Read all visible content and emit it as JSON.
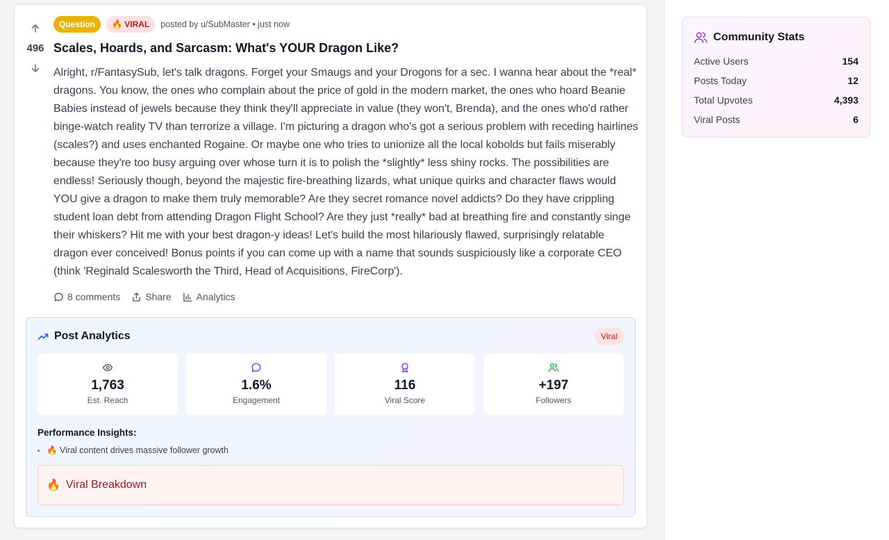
{
  "post": {
    "votes": "496",
    "flair": "Question",
    "viral_badge": "🔥 VIRAL",
    "meta": "posted by u/SubMaster • just now",
    "title": "Scales, Hoards, and Sarcasm: What's YOUR Dragon Like?",
    "body": "Alright, r/FantasySub, let's talk dragons. Forget your Smaugs and your Drogons for a sec. I wanna hear about the *real* dragons. You know, the ones who complain about the price of gold in the modern market, the ones who hoard Beanie Babies instead of jewels because they think they'll appreciate in value (they won't, Brenda), and the ones who'd rather binge-watch reality TV than terrorize a village. I'm picturing a dragon who's got a serious problem with receding hairlines (scales?) and uses enchanted Rogaine. Or maybe one who tries to unionize all the local kobolds but fails miserably because they're too busy arguing over whose turn it is to polish the *slightly* less shiny rocks. The possibilities are endless! Seriously though, beyond the majestic fire-breathing lizards, what unique quirks and character flaws would YOU give a dragon to make them truly memorable? Are they secret romance novel addicts? Do they have crippling student loan debt from attending Dragon Flight School? Are they just *really* bad at breathing fire and constantly singe their whiskers? Hit me with your best dragon-y ideas! Let's build the most hilariously flawed, surprisingly relatable dragon ever conceived! Bonus points if you can come up with a name that sounds suspiciously like a corporate CEO (think 'Reginald Scalesworth the Third, Head of Acquisitions, FireCorp').",
    "actions": {
      "comments": "8 comments",
      "share": "Share",
      "analytics": "Analytics"
    }
  },
  "analytics": {
    "title": "Post Analytics",
    "badge": "Viral",
    "stats": [
      {
        "icon": "eye-icon",
        "value": "1,763",
        "label": "Est. Reach",
        "color": "#4b5563"
      },
      {
        "icon": "comment-icon",
        "value": "1.6%",
        "label": "Engagement",
        "color": "#2563eb"
      },
      {
        "icon": "award-icon",
        "value": "116",
        "label": "Viral Score",
        "color": "#9333ea"
      },
      {
        "icon": "users-icon",
        "value": "+197",
        "label": "Followers",
        "color": "#16a34a"
      }
    ],
    "insights_title": "Performance Insights:",
    "insights": [
      "🔥 Viral content drives massive follower growth"
    ],
    "breakdown_emoji": "🔥",
    "breakdown_label": "Viral Breakdown"
  },
  "community": {
    "title": "Community Stats",
    "items": [
      {
        "label": "Active Users",
        "value": "154"
      },
      {
        "label": "Posts Today",
        "value": "12"
      },
      {
        "label": "Total Upvotes",
        "value": "4,393"
      },
      {
        "label": "Viral Posts",
        "value": "6"
      }
    ]
  },
  "colors": {
    "flair": "#eab308",
    "viral": "#b91c1c",
    "accent_blue": "#2563eb",
    "accent_purple": "#9333ea"
  }
}
